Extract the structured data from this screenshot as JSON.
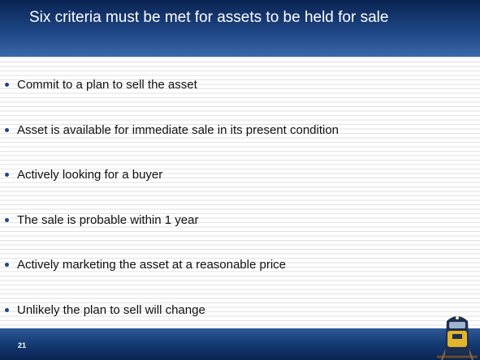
{
  "title": "Six criteria must be met for assets to be held for sale",
  "bullets": [
    "Commit to a plan to sell the asset",
    "Asset is available for immediate sale in its present condition",
    "Actively looking for a buyer",
    "The sale is probable within 1 year",
    "Actively marketing the asset at a reasonable price",
    "Unlikely the plan to sell will change"
  ],
  "page_number": "21"
}
